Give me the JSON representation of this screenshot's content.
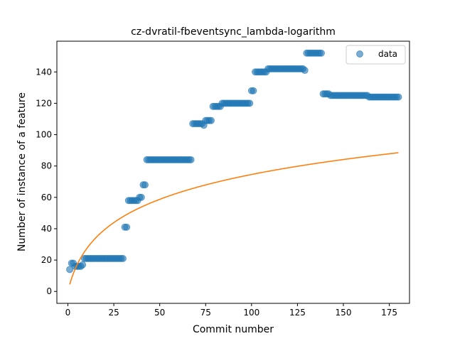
{
  "chart_data": {
    "type": "scatter",
    "title": "cz-dvratil-fbeventsync_lambda-logarithm",
    "xlabel": "Commit number",
    "ylabel": "Number of instance of a feature",
    "xlim": [
      -6,
      186
    ],
    "ylim": [
      -7.6,
      159.6
    ],
    "xticks": [
      0,
      25,
      50,
      75,
      100,
      125,
      150,
      175
    ],
    "yticks": [
      0,
      20,
      40,
      60,
      80,
      100,
      120,
      140
    ],
    "grid": false,
    "legend": {
      "position": "top-right",
      "entries": [
        "data"
      ]
    },
    "colors": {
      "scatter": "#1f77b4",
      "fit": "#ff7f0e"
    },
    "series": [
      {
        "name": "data",
        "kind": "scatter",
        "runs": [
          [
            1,
            1,
            14
          ],
          [
            2,
            3,
            18
          ],
          [
            4,
            7,
            16
          ],
          [
            8,
            8,
            17
          ],
          [
            9,
            30,
            21
          ],
          [
            31,
            32,
            41
          ],
          [
            33,
            38,
            58
          ],
          [
            39,
            40,
            60
          ],
          [
            41,
            42,
            68
          ],
          [
            43,
            67,
            84
          ],
          [
            68,
            73,
            107
          ],
          [
            74,
            74,
            106
          ],
          [
            75,
            78,
            109
          ],
          [
            79,
            83,
            118
          ],
          [
            84,
            99,
            120
          ],
          [
            100,
            101,
            128
          ],
          [
            102,
            108,
            140
          ],
          [
            109,
            128,
            142
          ],
          [
            129,
            129,
            141
          ],
          [
            130,
            138,
            152
          ],
          [
            139,
            142,
            126
          ],
          [
            143,
            163,
            125
          ],
          [
            164,
            180,
            124
          ]
        ]
      },
      {
        "kind": "line",
        "fit": {
          "a": 24.5,
          "b": 0.2
        },
        "x_range": [
          1,
          180
        ]
      }
    ]
  }
}
